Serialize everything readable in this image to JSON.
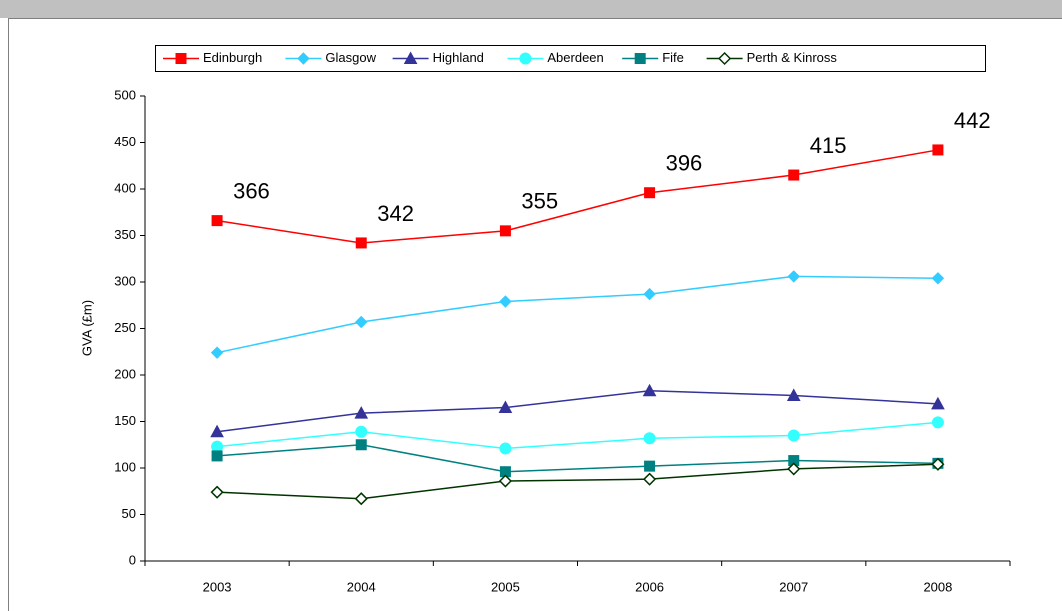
{
  "chart_data": {
    "type": "line",
    "y_label": "GVA (£m)",
    "categories": [
      "2003",
      "2004",
      "2005",
      "2006",
      "2007",
      "2008"
    ],
    "series": [
      {
        "name": "Edinburgh",
        "color": "#ff0000",
        "marker": "square",
        "labels": true,
        "values": [
          366,
          342,
          355,
          396,
          415,
          442
        ]
      },
      {
        "name": "Glasgow",
        "color": "#33ccff",
        "marker": "diamond",
        "values": [
          224,
          257,
          279,
          287,
          306,
          304
        ]
      },
      {
        "name": "Highland",
        "color": "#333399",
        "marker": "triangle",
        "values": [
          139,
          159,
          165,
          183,
          178,
          169
        ]
      },
      {
        "name": "Aberdeen",
        "color": "#33ffff",
        "marker": "circle",
        "values": [
          123,
          139,
          121,
          132,
          135,
          149
        ]
      },
      {
        "name": "Fife",
        "color": "#008080",
        "marker": "square",
        "values": [
          113,
          125,
          96,
          102,
          108,
          105
        ]
      },
      {
        "name": "Perth & Kinross",
        "color": "#003300",
        "marker": "open-diamond",
        "values": [
          74,
          67,
          86,
          88,
          99,
          104
        ]
      }
    ],
    "ylim": [
      0,
      500
    ],
    "yticks": [
      0,
      50,
      100,
      150,
      200,
      250,
      300,
      350,
      400,
      450,
      500
    ],
    "grid": false,
    "legend": "top"
  }
}
